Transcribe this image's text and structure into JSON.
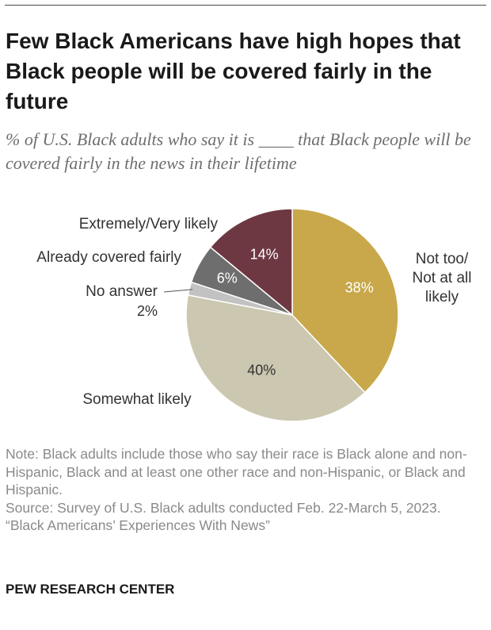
{
  "header": {
    "title": "Few Black Americans have high hopes that Black people will be covered fairly in the future",
    "subtitle": "% of U.S. Black adults who say it is ____ that Black people will be covered fairly in the news in their lifetime"
  },
  "chart_data": {
    "type": "pie",
    "title": "Few Black Americans have high hopes that Black people will be covered fairly in the future",
    "subtitle": "% of U.S. Black adults who say it is ____ that Black people will be covered fairly in the news in their lifetime",
    "unit": "%",
    "slices": [
      {
        "label": "Not too/ Not at all likely",
        "label_lines": [
          "Not too/",
          "Not at all",
          "likely"
        ],
        "value": 38,
        "value_label": "38%",
        "color": "#c8a84a"
      },
      {
        "label": "Somewhat likely",
        "label_lines": [
          "Somewhat likely"
        ],
        "value": 40,
        "value_label": "40%",
        "color": "#ccc7b0"
      },
      {
        "label": "No answer",
        "label_lines": [
          "No answer"
        ],
        "value": 2,
        "value_label": "2%",
        "color": "#c2c2c2"
      },
      {
        "label": "Already covered fairly",
        "label_lines": [
          "Already covered fairly"
        ],
        "value": 6,
        "value_label": "6%",
        "color": "#6e6e6e"
      },
      {
        "label": "Extremely/Very likely",
        "label_lines": [
          "Extremely/Very likely"
        ],
        "value": 14,
        "value_label": "14%",
        "color": "#6e3843"
      }
    ],
    "start_angle_deg": 0,
    "direction": "clockwise"
  },
  "footer": {
    "note": "Note: Black adults include those who say their race is Black alone and non-Hispanic, Black and at least one other race and non-Hispanic, or Black and Hispanic.",
    "source": "Source: Survey of U.S. Black adults conducted Feb. 22-March 5, 2023.",
    "report": "“Black Americans’ Experiences With News”",
    "brand": "PEW RESEARCH CENTER"
  }
}
